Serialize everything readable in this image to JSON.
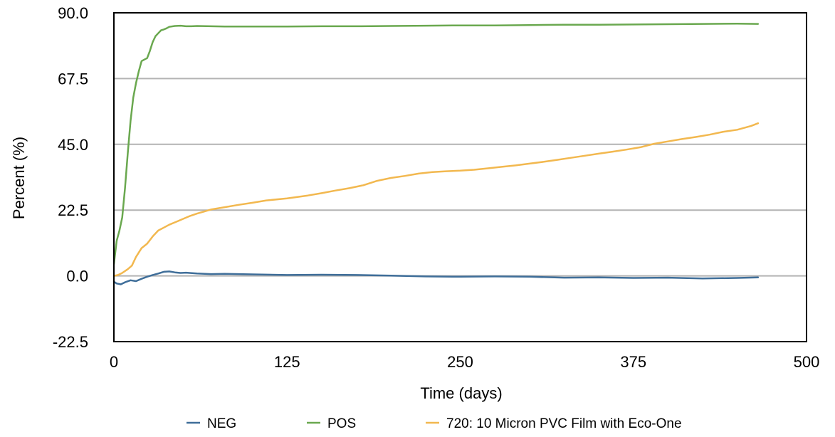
{
  "chart_data": {
    "type": "line",
    "xlabel": "Time (days)",
    "ylabel": "Percent (%)",
    "xlim": [
      0,
      500
    ],
    "ylim": [
      -22.5,
      90
    ],
    "xticks": [
      "0",
      "125",
      "250",
      "375",
      "500"
    ],
    "xtick_values": [
      0,
      125,
      250,
      375,
      500
    ],
    "yticks": [
      "90.0",
      "67.5",
      "45.0",
      "22.5",
      "0.0",
      "-22.5"
    ],
    "ytick_values": [
      90,
      67.5,
      45,
      22.5,
      0,
      -22.5
    ],
    "grid": "horizontal",
    "legend_position": "bottom",
    "series": [
      {
        "name": "NEG",
        "color": "#3f6e99",
        "x": [
          0,
          2,
          5,
          8,
          12,
          16,
          20,
          24,
          28,
          32,
          36,
          40,
          44,
          48,
          52,
          60,
          70,
          80,
          90,
          100,
          125,
          150,
          175,
          200,
          225,
          250,
          275,
          300,
          325,
          350,
          375,
          400,
          425,
          450,
          465
        ],
        "values": [
          -2.0,
          -2.6,
          -2.9,
          -2.2,
          -1.5,
          -1.8,
          -1.0,
          -0.3,
          0.3,
          0.8,
          1.4,
          1.5,
          1.2,
          1.0,
          1.1,
          0.8,
          0.6,
          0.7,
          0.6,
          0.5,
          0.3,
          0.4,
          0.3,
          0.1,
          -0.2,
          -0.3,
          -0.2,
          -0.3,
          -0.6,
          -0.5,
          -0.7,
          -0.6,
          -0.9,
          -0.7,
          -0.5
        ]
      },
      {
        "name": "POS",
        "color": "#6aa84f",
        "x": [
          0,
          2,
          4,
          6,
          8,
          10,
          12,
          14,
          16,
          18,
          20,
          22,
          24,
          26,
          28,
          30,
          32,
          34,
          36,
          38,
          40,
          44,
          48,
          52,
          56,
          60,
          80,
          100,
          125,
          150,
          175,
          200,
          225,
          250,
          275,
          300,
          325,
          350,
          375,
          400,
          425,
          450,
          465
        ],
        "values": [
          4.0,
          12.0,
          15.5,
          20.0,
          30.0,
          42.0,
          53.0,
          61.0,
          66.0,
          70.0,
          73.5,
          74.0,
          74.5,
          77.0,
          80.0,
          82.0,
          83.0,
          84.0,
          84.3,
          84.7,
          85.2,
          85.5,
          85.6,
          85.4,
          85.4,
          85.5,
          85.3,
          85.3,
          85.3,
          85.4,
          85.4,
          85.5,
          85.6,
          85.7,
          85.7,
          85.8,
          85.9,
          85.9,
          86.0,
          86.1,
          86.2,
          86.3,
          86.2
        ]
      },
      {
        "name": "720: 10 Micron PVC Film with Eco-One",
        "color": "#f2b84f",
        "x": [
          0,
          3,
          6,
          10,
          13,
          16,
          20,
          24,
          28,
          32,
          36,
          40,
          45,
          50,
          55,
          60,
          65,
          70,
          80,
          90,
          100,
          110,
          125,
          140,
          150,
          160,
          170,
          180,
          190,
          200,
          210,
          220,
          230,
          240,
          250,
          260,
          270,
          280,
          290,
          300,
          310,
          320,
          330,
          340,
          350,
          360,
          370,
          380,
          390,
          400,
          410,
          420,
          430,
          440,
          450,
          460,
          465
        ],
        "values": [
          0.0,
          0.3,
          1.0,
          2.3,
          3.5,
          6.5,
          9.5,
          11.0,
          13.5,
          15.5,
          16.5,
          17.5,
          18.5,
          19.5,
          20.5,
          21.3,
          22.0,
          22.7,
          23.5,
          24.3,
          25.0,
          25.8,
          26.5,
          27.5,
          28.3,
          29.2,
          30.0,
          31.0,
          32.5,
          33.5,
          34.2,
          35.0,
          35.5,
          35.8,
          36.0,
          36.3,
          36.8,
          37.3,
          37.8,
          38.4,
          39.0,
          39.7,
          40.4,
          41.1,
          41.8,
          42.5,
          43.2,
          44.0,
          45.2,
          46.0,
          46.8,
          47.5,
          48.3,
          49.3,
          50.0,
          51.3,
          52.2
        ]
      }
    ]
  }
}
